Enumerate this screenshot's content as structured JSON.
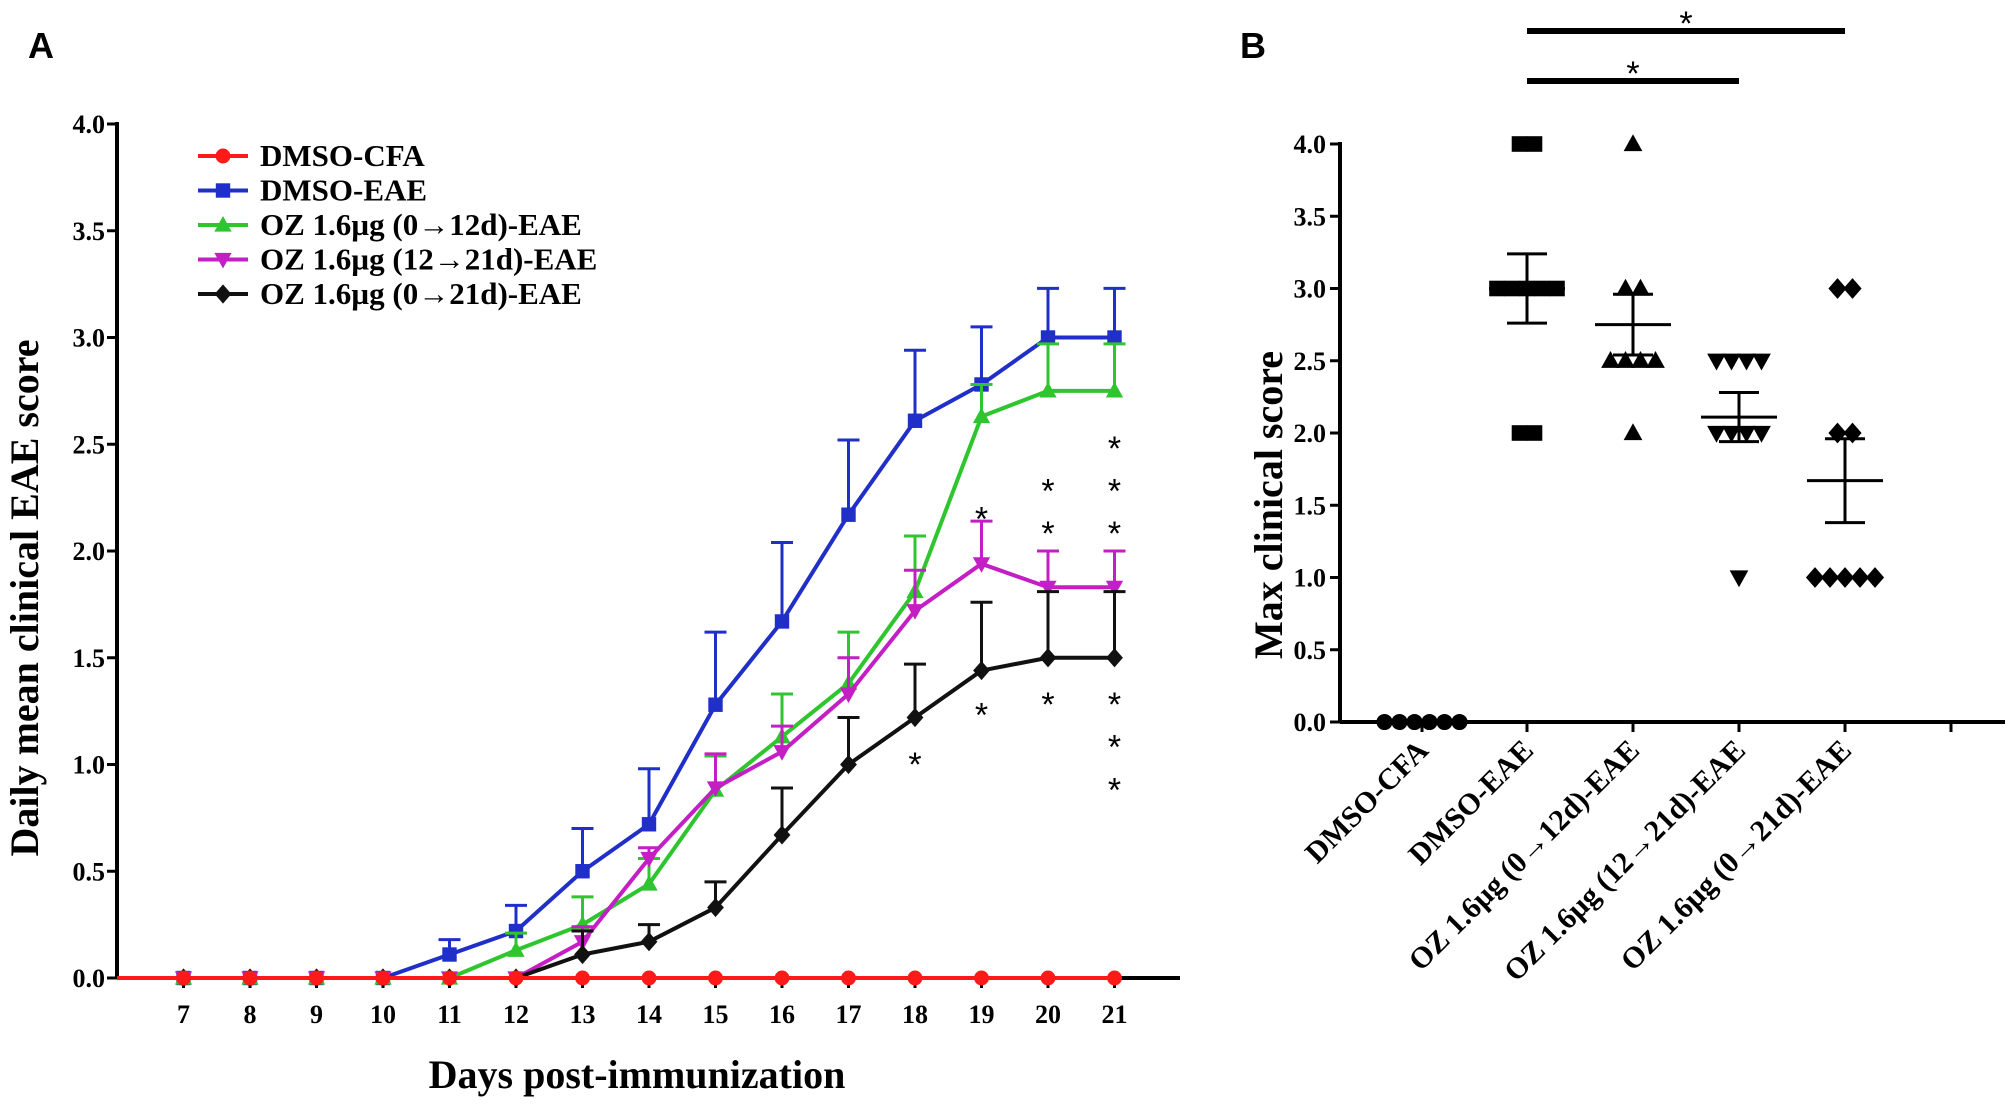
{
  "chart_data": [
    {
      "panel": "A",
      "type": "line",
      "xlabel": "Days post-immunization",
      "ylabel": "Daily mean clinical EAE score",
      "x": [
        6,
        7,
        8,
        9,
        10,
        11,
        12,
        13,
        14,
        15,
        16,
        17,
        18,
        19,
        20,
        21
      ],
      "x_tick_labels": [
        "7",
        "8",
        "9",
        "10",
        "11",
        "12",
        "13",
        "14",
        "15",
        "16",
        "17",
        "18",
        "19",
        "20",
        "21"
      ],
      "ylim": [
        0,
        4.0
      ],
      "y_tick_labels": [
        "0.0",
        "0.5",
        "1.0",
        "1.5",
        "2.0",
        "2.5",
        "3.0",
        "3.5",
        "4.0"
      ],
      "series": [
        {
          "name": "DMSO-CFA",
          "color": "#ff1a1a",
          "marker": "circle",
          "values": [
            0,
            0,
            0,
            0,
            0,
            0,
            0,
            0,
            0,
            0,
            0,
            0,
            0,
            0,
            0,
            0
          ],
          "errors": [
            0,
            0,
            0,
            0,
            0,
            0,
            0,
            0,
            0,
            0,
            0,
            0,
            0,
            0,
            0,
            0
          ]
        },
        {
          "name": "DMSO-EAE",
          "color": "#1f2fc8",
          "marker": "square",
          "values": [
            0,
            0,
            0,
            0,
            0,
            0.11,
            0.22,
            0.5,
            0.72,
            1.28,
            1.67,
            2.17,
            2.61,
            2.78,
            3.0,
            3.0
          ],
          "errors": [
            0,
            0,
            0,
            0,
            0,
            0.07,
            0.12,
            0.2,
            0.26,
            0.34,
            0.37,
            0.35,
            0.33,
            0.27,
            0.23,
            0.23
          ]
        },
        {
          "name": "OZ 1.6µg (0→12d)-EAE",
          "color": "#2ec52e",
          "marker": "triangle-up",
          "values": [
            0,
            0,
            0,
            0,
            0,
            0,
            0.13,
            0.25,
            0.44,
            0.88,
            1.13,
            1.38,
            1.81,
            2.63,
            2.75,
            2.75
          ],
          "errors": [
            0,
            0,
            0,
            0,
            0,
            0,
            0.08,
            0.13,
            0.12,
            0.16,
            0.2,
            0.24,
            0.26,
            0.15,
            0.22,
            0.22
          ]
        },
        {
          "name": "OZ 1.6µg (12→21d)-EAE",
          "color": "#c41fc4",
          "marker": "triangle-down",
          "values": [
            0,
            0,
            0,
            0,
            0,
            0,
            0,
            0.17,
            0.56,
            0.89,
            1.06,
            1.33,
            1.72,
            1.94,
            1.83,
            1.83
          ],
          "errors": [
            0,
            0,
            0,
            0,
            0,
            0,
            0,
            0.07,
            0.05,
            0.16,
            0.12,
            0.17,
            0.19,
            0.2,
            0.17,
            0.17
          ]
        },
        {
          "name": "OZ 1.6µg (0→21d)-EAE",
          "color": "#111111",
          "marker": "diamond",
          "values": [
            0,
            0,
            0,
            0,
            0,
            0,
            0,
            0.11,
            0.17,
            0.33,
            0.67,
            1.0,
            1.22,
            1.44,
            1.5,
            1.5
          ],
          "errors": [
            0,
            0,
            0,
            0,
            0,
            0,
            0,
            0.11,
            0.08,
            0.12,
            0.22,
            0.22,
            0.25,
            0.32,
            0.31,
            0.31
          ]
        }
      ],
      "significance_marks": [
        {
          "day": 18,
          "text": "*",
          "y": 1.05
        },
        {
          "day": 19,
          "text": "*",
          "y": 2.2
        },
        {
          "day": 19,
          "text": "*",
          "y": 1.28
        },
        {
          "day": 20,
          "text": "*",
          "y": 2.33
        },
        {
          "day": 20,
          "text": "*",
          "y": 2.13
        },
        {
          "day": 20,
          "text": "*",
          "y": 1.33
        },
        {
          "day": 21,
          "text": "*",
          "y": 2.53
        },
        {
          "day": 21,
          "text": "*",
          "y": 2.33
        },
        {
          "day": 21,
          "text": "*",
          "y": 2.13
        },
        {
          "day": 21,
          "text": "*",
          "y": 1.33
        },
        {
          "day": 21,
          "text": "*",
          "y": 1.13
        },
        {
          "day": 21,
          "text": "*",
          "y": 0.93
        }
      ]
    },
    {
      "panel": "B",
      "type": "scatter",
      "xlabel": "",
      "ylabel": "Max clinical score",
      "categories": [
        "DMSO-CFA",
        "DMSO-EAE",
        "OZ 1.6µg (0→12d)-EAE",
        "OZ 1.6µg (12→21d)-EAE",
        "OZ 1.6µg (0→21d)-EAE"
      ],
      "ylim": [
        0,
        4.0
      ],
      "y_tick_labels": [
        "0.0",
        "0.5",
        "1.0",
        "1.5",
        "2.0",
        "2.5",
        "3.0",
        "3.5",
        "4.0"
      ],
      "groups": [
        {
          "name": "DMSO-CFA",
          "marker": "circle",
          "points": [
            0,
            0,
            0,
            0,
            0,
            0
          ],
          "mean": 0,
          "sem": 0
        },
        {
          "name": "DMSO-EAE",
          "marker": "square",
          "points": [
            4.0,
            4.0,
            3.0,
            3.0,
            3.0,
            3.0,
            3.0,
            2.0,
            2.0
          ],
          "mean": 3.0,
          "sem": 0.24
        },
        {
          "name": "OZ 1.6µg (0→12d)-EAE",
          "marker": "triangle-up",
          "points": [
            4.0,
            3.0,
            3.0,
            2.5,
            2.5,
            2.5,
            2.0,
            2.5
          ],
          "mean": 2.75,
          "sem": 0.21
        },
        {
          "name": "OZ 1.6µg (12→21d)-EAE",
          "marker": "triangle-down",
          "points": [
            2.5,
            2.5,
            2.5,
            2.5,
            2.0,
            2.0,
            2.0,
            2.0,
            1.0
          ],
          "mean": 2.11,
          "sem": 0.17
        },
        {
          "name": "OZ 1.6µg (0→21d)-EAE",
          "marker": "diamond",
          "points": [
            3.0,
            3.0,
            2.0,
            2.0,
            1.0,
            1.0,
            1.0,
            1.0,
            1.0
          ],
          "mean": 1.67,
          "sem": 0.29
        }
      ],
      "significance_bars": [
        {
          "from": "DMSO-EAE",
          "to": "OZ 1.6µg (0→21d)-EAE",
          "text": "*"
        },
        {
          "from": "DMSO-EAE",
          "to": "OZ 1.6µg (12→21d)-EAE",
          "text": "*"
        }
      ]
    }
  ],
  "panel_labels": {
    "a": "A",
    "b": "B"
  }
}
